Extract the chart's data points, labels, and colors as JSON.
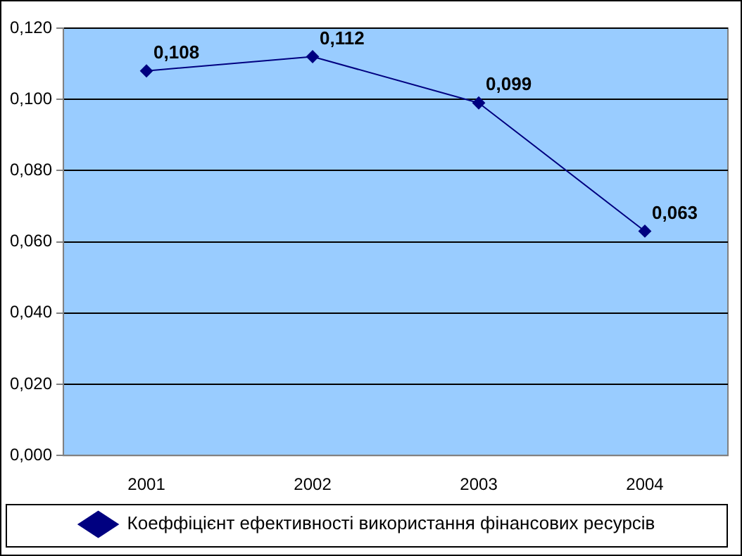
{
  "chart_data": {
    "type": "line",
    "categories": [
      "2001",
      "2002",
      "2003",
      "2004"
    ],
    "series": [
      {
        "name": "Коеффіцієнт ефективності використання фінансових ресурсів",
        "color": "#000080",
        "values": [
          0.108,
          0.112,
          0.099,
          0.063
        ],
        "value_labels": [
          "0,108",
          "0,112",
          "0,099",
          "0,063"
        ]
      }
    ],
    "ylim": [
      0,
      0.12
    ],
    "yticks": [
      {
        "value": 0,
        "label": "0,000"
      },
      {
        "value": 0.02,
        "label": "0,020"
      },
      {
        "value": 0.04,
        "label": "0,040"
      },
      {
        "value": 0.06,
        "label": "0,060"
      },
      {
        "value": 0.08,
        "label": "0,080"
      },
      {
        "value": 0.1,
        "label": "0,100"
      },
      {
        "value": 0.12,
        "label": "0,120"
      }
    ],
    "grid": "y",
    "legend": "bottom",
    "marker": "diamond",
    "line_style": "solid"
  }
}
